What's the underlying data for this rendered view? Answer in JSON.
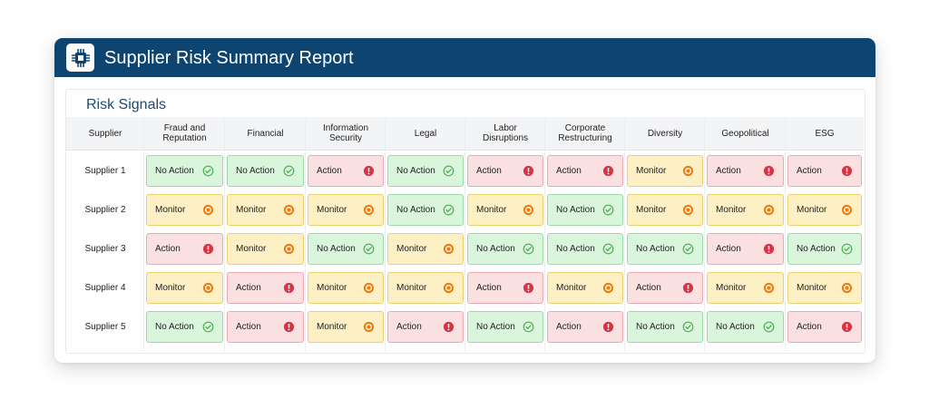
{
  "report": {
    "title": "Supplier Risk Summary Report",
    "logo_icon": "chip-icon"
  },
  "section": {
    "title": "Risk Signals"
  },
  "columns": {
    "supplier": "Supplier",
    "categories": [
      [
        "Fraud and",
        "Reputation"
      ],
      [
        "Financial"
      ],
      [
        "Information",
        "Security"
      ],
      [
        "Legal"
      ],
      [
        "Labor",
        "Disruptions"
      ],
      [
        "Corporate",
        "Restructuring"
      ],
      [
        "Diversity"
      ],
      [
        "Geopolitical"
      ],
      [
        "ESG"
      ]
    ]
  },
  "statuses": {
    "noaction": {
      "label": "No Action",
      "icon": "check-circle-icon",
      "color": "#4caf50"
    },
    "monitor": {
      "label": "Monitor",
      "icon": "target-icon",
      "color": "#f07a12"
    },
    "action": {
      "label": "Action",
      "icon": "alert-icon",
      "color": "#d63545"
    }
  },
  "rows": [
    {
      "supplier": "Supplier 1",
      "signals": [
        "noaction",
        "noaction",
        "action",
        "noaction",
        "action",
        "action",
        "monitor",
        "action",
        "action"
      ]
    },
    {
      "supplier": "Supplier 2",
      "signals": [
        "monitor",
        "monitor",
        "monitor",
        "noaction",
        "monitor",
        "noaction",
        "monitor",
        "monitor",
        "monitor"
      ]
    },
    {
      "supplier": "Supplier 3",
      "signals": [
        "action",
        "monitor",
        "noaction",
        "monitor",
        "noaction",
        "noaction",
        "noaction",
        "action",
        "noaction"
      ]
    },
    {
      "supplier": "Supplier 4",
      "signals": [
        "monitor",
        "action",
        "monitor",
        "monitor",
        "action",
        "monitor",
        "action",
        "monitor",
        "monitor"
      ]
    },
    {
      "supplier": "Supplier 5",
      "signals": [
        "noaction",
        "action",
        "monitor",
        "action",
        "noaction",
        "action",
        "noaction",
        "noaction",
        "action"
      ]
    }
  ]
}
